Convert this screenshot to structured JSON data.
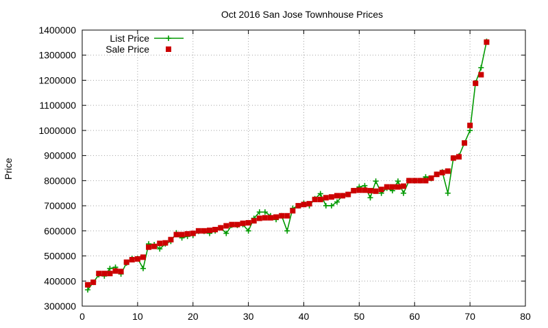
{
  "chart_data": {
    "type": "line",
    "title": "Oct 2016 San Jose Townhouse Prices",
    "xlabel": "",
    "ylabel": "Price",
    "xlim": [
      0,
      80
    ],
    "ylim": [
      300000,
      1400000
    ],
    "xticks": [
      0,
      10,
      20,
      30,
      40,
      50,
      60,
      70,
      80
    ],
    "yticks": [
      300000,
      400000,
      500000,
      600000,
      700000,
      800000,
      900000,
      1000000,
      1100000,
      1200000,
      1300000,
      1400000
    ],
    "grid": true,
    "legend_position": "top-left",
    "x": [
      1,
      2,
      3,
      4,
      5,
      6,
      7,
      8,
      9,
      10,
      11,
      12,
      13,
      14,
      15,
      16,
      17,
      18,
      19,
      20,
      21,
      22,
      23,
      24,
      25,
      26,
      27,
      28,
      29,
      30,
      31,
      32,
      33,
      34,
      35,
      36,
      37,
      38,
      39,
      40,
      41,
      42,
      43,
      44,
      45,
      46,
      47,
      48,
      49,
      50,
      51,
      52,
      53,
      54,
      55,
      56,
      57,
      58,
      59,
      60,
      61,
      62,
      63,
      64,
      65,
      66,
      67,
      68,
      69,
      70,
      71,
      72,
      73
    ],
    "series": [
      {
        "name": "List Price",
        "color": "#009900",
        "marker": "plus",
        "style": "linespoints",
        "values": [
          365000,
          395000,
          425000,
          420000,
          450000,
          455000,
          428000,
          472000,
          490000,
          490000,
          450000,
          548000,
          545000,
          528000,
          548000,
          558000,
          592000,
          572000,
          578000,
          582000,
          598000,
          598000,
          590000,
          600000,
          612000,
          590000,
          622000,
          622000,
          625000,
          600000,
          650000,
          675000,
          675000,
          660000,
          645000,
          660000,
          600000,
          690000,
          700000,
          710000,
          700000,
          728000,
          748000,
          700000,
          700000,
          715000,
          740000,
          745000,
          760000,
          775000,
          780000,
          732000,
          798000,
          750000,
          770000,
          760000,
          798000,
          750000,
          800000,
          800000,
          800000,
          815000,
          808000,
          825000,
          835000,
          750000,
          890000,
          898000,
          950000,
          1000000,
          1190000,
          1250000,
          1355000
        ]
      },
      {
        "name": "Sale Price",
        "color": "#cc0000",
        "marker": "square",
        "style": "points",
        "values": [
          385000,
          395000,
          430000,
          430000,
          430000,
          440000,
          438000,
          475000,
          485000,
          488000,
          495000,
          535000,
          538000,
          550000,
          552000,
          565000,
          585000,
          585000,
          588000,
          590000,
          600000,
          600000,
          602000,
          605000,
          612000,
          620000,
          625000,
          625000,
          630000,
          632000,
          640000,
          650000,
          652000,
          652000,
          655000,
          660000,
          660000,
          680000,
          700000,
          705000,
          708000,
          725000,
          725000,
          732000,
          735000,
          740000,
          740000,
          745000,
          760000,
          762000,
          762000,
          760000,
          758000,
          765000,
          775000,
          775000,
          775000,
          778000,
          800000,
          800000,
          800000,
          800000,
          810000,
          825000,
          832000,
          838000,
          890000,
          895000,
          950000,
          1020000,
          1188000,
          1222000,
          1352000
        ]
      }
    ]
  }
}
